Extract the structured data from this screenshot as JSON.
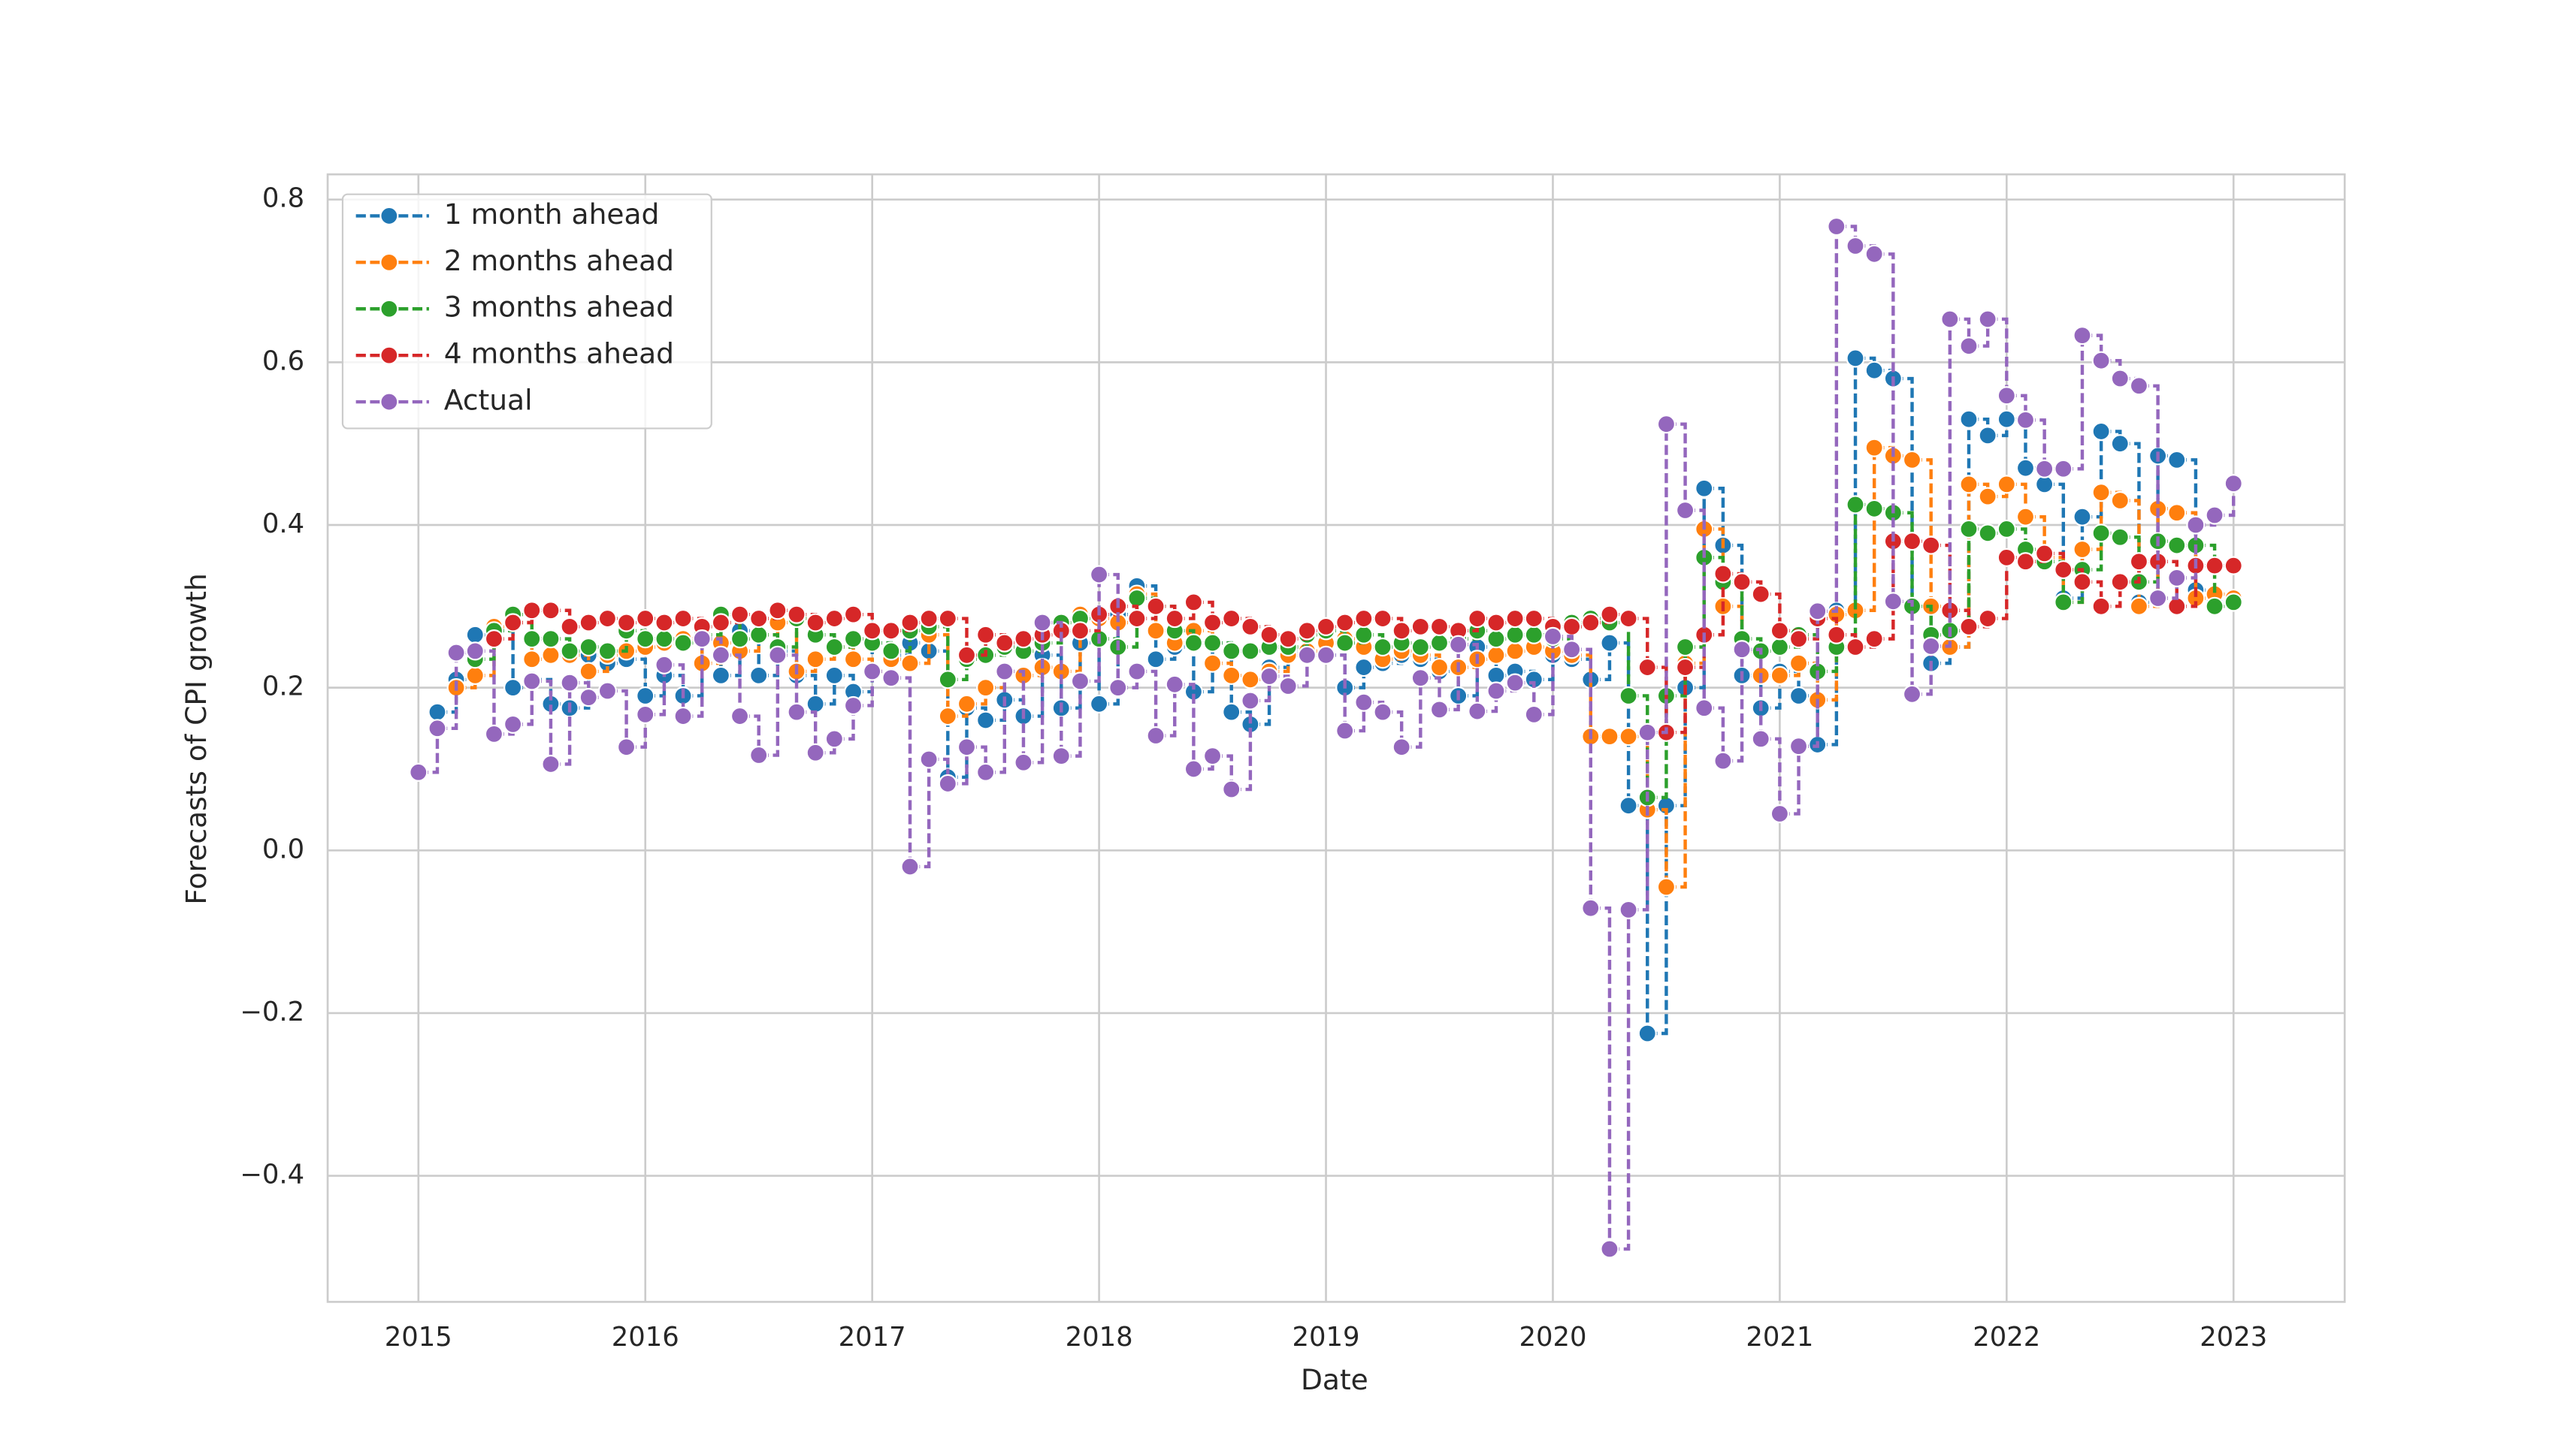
{
  "chart_data": {
    "type": "step",
    "xlabel": "Date",
    "ylabel": "Forecasts of CPI growth",
    "x": [
      "2015-01",
      "2015-02",
      "2015-03",
      "2015-04",
      "2015-05",
      "2015-06",
      "2015-07",
      "2015-08",
      "2015-09",
      "2015-10",
      "2015-11",
      "2015-12",
      "2016-01",
      "2016-02",
      "2016-03",
      "2016-04",
      "2016-05",
      "2016-06",
      "2016-07",
      "2016-08",
      "2016-09",
      "2016-10",
      "2016-11",
      "2016-12",
      "2017-01",
      "2017-02",
      "2017-03",
      "2017-04",
      "2017-05",
      "2017-06",
      "2017-07",
      "2017-08",
      "2017-09",
      "2017-10",
      "2017-11",
      "2017-12",
      "2018-01",
      "2018-02",
      "2018-03",
      "2018-04",
      "2018-05",
      "2018-06",
      "2018-07",
      "2018-08",
      "2018-09",
      "2018-10",
      "2018-11",
      "2018-12",
      "2019-01",
      "2019-02",
      "2019-03",
      "2019-04",
      "2019-05",
      "2019-06",
      "2019-07",
      "2019-08",
      "2019-09",
      "2019-10",
      "2019-11",
      "2019-12",
      "2020-01",
      "2020-02",
      "2020-03",
      "2020-04",
      "2020-05",
      "2020-06",
      "2020-07",
      "2020-08",
      "2020-09",
      "2020-10",
      "2020-11",
      "2020-12",
      "2021-01",
      "2021-02",
      "2021-03",
      "2021-04",
      "2021-05",
      "2021-06",
      "2021-07",
      "2021-08",
      "2021-09",
      "2021-10",
      "2021-11",
      "2021-12",
      "2022-01",
      "2022-02",
      "2022-03",
      "2022-04",
      "2022-05",
      "2022-06",
      "2022-07",
      "2022-08",
      "2022-09",
      "2022-10",
      "2022-11",
      "2022-12",
      "2023-01"
    ],
    "series": [
      {
        "name": "1 month ahead",
        "color": "#1f77b4",
        "values": [
          null,
          0.17,
          0.21,
          0.265,
          0.27,
          0.2,
          0.21,
          0.18,
          0.175,
          0.24,
          0.23,
          0.235,
          0.19,
          0.215,
          0.19,
          0.26,
          0.215,
          0.27,
          0.215,
          0.245,
          0.215,
          0.18,
          0.215,
          0.195,
          0.255,
          0.24,
          0.255,
          0.245,
          0.09,
          0.175,
          0.16,
          0.185,
          0.165,
          0.24,
          0.175,
          0.255,
          0.18,
          0.29,
          0.325,
          0.235,
          0.25,
          0.195,
          0.255,
          0.17,
          0.155,
          0.225,
          0.245,
          0.24,
          0.24,
          0.2,
          0.225,
          0.23,
          0.24,
          0.235,
          0.22,
          0.19,
          0.25,
          0.215,
          0.22,
          0.21,
          0.24,
          0.235,
          0.21,
          0.255,
          0.055,
          -0.225,
          0.055,
          0.2,
          0.445,
          0.375,
          0.215,
          0.175,
          0.22,
          0.19,
          0.13,
          0.295,
          0.605,
          0.59,
          0.58,
          0.3,
          0.23,
          0.25,
          0.53,
          0.51,
          0.53,
          0.47,
          0.45,
          0.31,
          0.41,
          0.515,
          0.5,
          0.305,
          0.485,
          0.48,
          0.32,
          0.305,
          0.305
        ]
      },
      {
        "name": "2 months ahead",
        "color": "#ff7f0e",
        "values": [
          null,
          null,
          0.2,
          0.215,
          0.275,
          0.28,
          0.235,
          0.24,
          0.24,
          0.22,
          0.24,
          0.245,
          0.25,
          0.255,
          0.26,
          0.23,
          0.255,
          0.245,
          0.265,
          0.28,
          0.22,
          0.235,
          0.25,
          0.235,
          0.22,
          0.235,
          0.23,
          0.265,
          0.165,
          0.18,
          0.2,
          0.22,
          0.215,
          0.225,
          0.22,
          0.29,
          0.285,
          0.28,
          0.315,
          0.27,
          0.255,
          0.27,
          0.23,
          0.215,
          0.21,
          0.22,
          0.24,
          0.245,
          0.255,
          0.26,
          0.25,
          0.235,
          0.245,
          0.24,
          0.225,
          0.225,
          0.235,
          0.24,
          0.245,
          0.25,
          0.245,
          0.24,
          0.14,
          0.14,
          0.14,
          0.05,
          -0.045,
          0.23,
          0.395,
          0.3,
          0.245,
          0.215,
          0.215,
          0.23,
          0.185,
          0.29,
          0.295,
          0.495,
          0.485,
          0.48,
          0.3,
          0.25,
          0.45,
          0.435,
          0.45,
          0.41,
          0.36,
          0.305,
          0.37,
          0.44,
          0.43,
          0.3,
          0.42,
          0.415,
          0.31,
          0.315,
          0.31
        ]
      },
      {
        "name": "3 months ahead",
        "color": "#2ca02c",
        "values": [
          null,
          null,
          null,
          0.235,
          0.27,
          0.29,
          0.26,
          0.26,
          0.245,
          0.25,
          0.245,
          0.27,
          0.26,
          0.26,
          0.255,
          0.265,
          0.29,
          0.26,
          0.265,
          0.25,
          0.285,
          0.265,
          0.25,
          0.26,
          0.255,
          0.245,
          0.27,
          0.275,
          0.21,
          0.235,
          0.24,
          0.25,
          0.245,
          0.255,
          0.28,
          0.285,
          0.26,
          0.25,
          0.31,
          0.3,
          0.27,
          0.255,
          0.255,
          0.245,
          0.245,
          0.25,
          0.25,
          0.265,
          0.27,
          0.255,
          0.265,
          0.25,
          0.255,
          0.25,
          0.255,
          0.26,
          0.27,
          0.26,
          0.265,
          0.265,
          0.26,
          0.28,
          0.285,
          0.28,
          0.19,
          0.065,
          0.19,
          0.25,
          0.36,
          0.33,
          0.26,
          0.245,
          0.25,
          0.265,
          0.22,
          0.25,
          0.425,
          0.42,
          0.415,
          0.3,
          0.265,
          0.27,
          0.395,
          0.39,
          0.395,
          0.37,
          0.355,
          0.305,
          0.345,
          0.39,
          0.385,
          0.33,
          0.38,
          0.375,
          0.375,
          0.3,
          0.305
        ]
      },
      {
        "name": "4 months ahead",
        "color": "#d62728",
        "values": [
          null,
          null,
          null,
          null,
          0.26,
          0.28,
          0.295,
          0.295,
          0.275,
          0.28,
          0.285,
          0.28,
          0.285,
          0.28,
          0.285,
          0.275,
          0.28,
          0.29,
          0.285,
          0.295,
          0.29,
          0.28,
          0.285,
          0.29,
          0.27,
          0.27,
          0.28,
          0.285,
          0.285,
          0.24,
          0.265,
          0.255,
          0.26,
          0.265,
          0.27,
          0.27,
          0.29,
          0.3,
          0.285,
          0.3,
          0.285,
          0.305,
          0.28,
          0.285,
          0.275,
          0.265,
          0.26,
          0.27,
          0.275,
          0.28,
          0.285,
          0.285,
          0.27,
          0.275,
          0.275,
          0.27,
          0.285,
          0.28,
          0.285,
          0.285,
          0.275,
          0.275,
          0.28,
          0.29,
          0.285,
          0.225,
          0.145,
          0.225,
          0.265,
          0.34,
          0.33,
          0.315,
          0.27,
          0.26,
          0.285,
          0.265,
          0.25,
          0.26,
          0.38,
          0.38,
          0.375,
          0.295,
          0.275,
          0.285,
          0.36,
          0.355,
          0.365,
          0.345,
          0.33,
          0.3,
          0.33,
          0.355,
          0.355,
          0.3,
          0.35,
          0.35,
          0.35
        ]
      },
      {
        "name": "Actual",
        "color": "#9467bd",
        "values": [
          0.096,
          0.15,
          0.243,
          0.245,
          0.143,
          0.155,
          0.208,
          0.106,
          0.206,
          0.188,
          0.196,
          0.127,
          0.167,
          0.228,
          0.165,
          0.26,
          0.24,
          0.165,
          0.117,
          0.24,
          0.17,
          0.12,
          0.137,
          0.178,
          0.22,
          0.212,
          -0.02,
          0.112,
          0.082,
          0.127,
          0.096,
          0.22,
          0.108,
          0.28,
          0.116,
          0.208,
          0.339,
          0.2,
          0.22,
          0.141,
          0.204,
          0.1,
          0.116,
          0.075,
          0.184,
          0.214,
          0.202,
          0.24,
          0.24,
          0.147,
          0.182,
          0.17,
          0.127,
          0.212,
          0.173,
          0.253,
          0.171,
          0.196,
          0.206,
          0.167,
          0.263,
          0.247,
          -0.071,
          -0.49,
          -0.073,
          0.145,
          0.524,
          0.418,
          0.175,
          0.11,
          0.247,
          0.137,
          0.045,
          0.128,
          0.294,
          0.767,
          0.743,
          0.733,
          0.306,
          0.192,
          0.251,
          0.653,
          0.62,
          0.653,
          0.559,
          0.529,
          0.469,
          0.469,
          0.633,
          0.602,
          0.58,
          0.571,
          0.31,
          0.335,
          0.4,
          0.412,
          0.451
        ]
      }
    ],
    "xlim": [
      2014.6,
      2023.49
    ],
    "xticks": [
      2015,
      2016,
      2017,
      2018,
      2019,
      2020,
      2021,
      2022,
      2023
    ],
    "ylim": [
      -0.555,
      0.831
    ],
    "yticks": [
      {
        "value": -0.4,
        "label": "−0.4"
      },
      {
        "value": -0.2,
        "label": "−0.2"
      },
      {
        "value": 0,
        "label": "0.0"
      },
      0.2,
      0.4,
      0.6,
      0.8
    ],
    "grid": true,
    "legend": "upper left"
  }
}
